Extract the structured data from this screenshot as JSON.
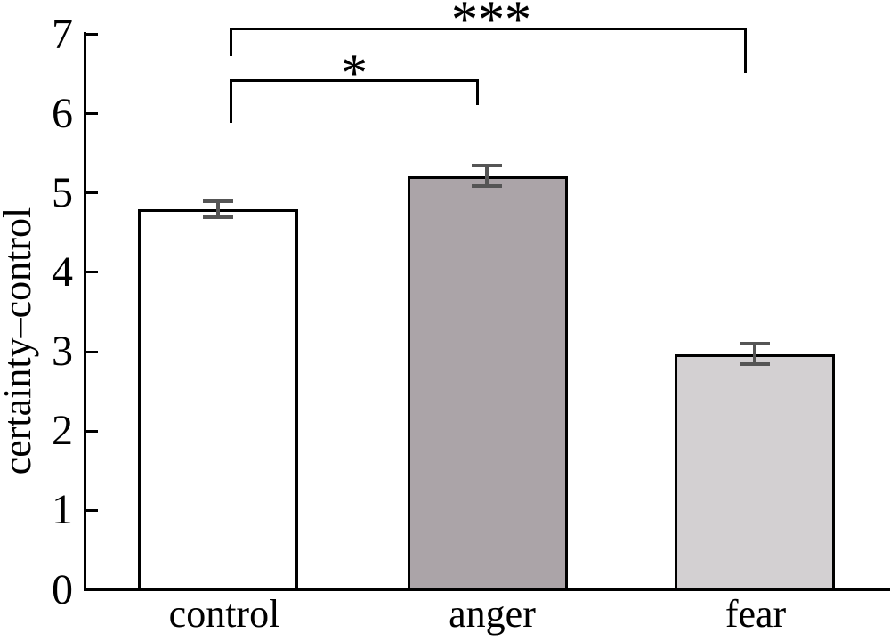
{
  "chart_data": {
    "type": "bar",
    "title": "",
    "categories": [
      "control",
      "anger",
      "fear"
    ],
    "values": [
      4.8,
      5.22,
      2.97
    ],
    "errors": [
      0.1,
      0.13,
      0.13
    ],
    "xlabel": "",
    "ylabel": "certainty–control",
    "ylim": [
      0,
      7
    ],
    "yticks": [
      0,
      1,
      2,
      3,
      4,
      5,
      6,
      7
    ],
    "grid": false,
    "legend": false,
    "bar_fill_colors": [
      "#ffffff",
      "#aba4a8",
      "#d3d0d2"
    ],
    "bar_border_color": "#000000",
    "error_bar_color": "#555555",
    "significance_brackets": [
      {
        "from": "control",
        "to": "anger",
        "label": "*"
      },
      {
        "from": "control",
        "to": "fear",
        "label": "***"
      }
    ]
  }
}
